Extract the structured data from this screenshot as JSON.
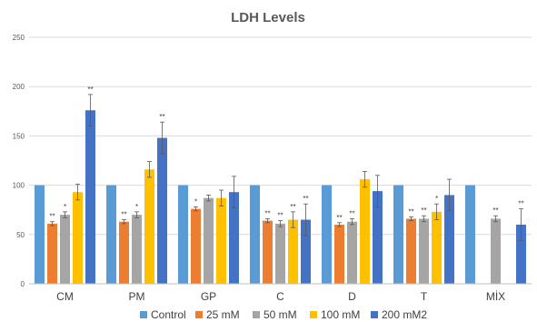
{
  "chart_data": {
    "type": "bar",
    "title": "LDH Levels",
    "xlabel": "",
    "ylabel": "",
    "ylim": [
      0,
      250
    ],
    "yticks": [
      0,
      50,
      100,
      150,
      200,
      250
    ],
    "grid": true,
    "legend_position": "bottom",
    "categories": [
      "CM",
      "PM",
      "GP",
      "C",
      "D",
      "T",
      "MİX"
    ],
    "series": [
      {
        "name": "Control",
        "color": "#5B9BD5",
        "values": [
          100,
          100,
          100,
          100,
          100,
          100,
          100
        ],
        "errors": [
          null,
          null,
          null,
          null,
          null,
          null,
          null
        ],
        "significance": [
          "",
          "",
          "",
          "",
          "",
          "",
          ""
        ]
      },
      {
        "name": "25 mM",
        "color": "#ED7D31",
        "values": [
          61,
          63,
          76,
          64,
          60,
          66,
          null
        ],
        "errors": [
          2,
          2,
          2,
          2,
          2,
          2,
          null
        ],
        "significance": [
          "**",
          "**",
          "*",
          "**",
          "**",
          "**",
          ""
        ]
      },
      {
        "name": "50 mM",
        "color": "#A5A5A5",
        "values": [
          70,
          70,
          87,
          61,
          63,
          66,
          66
        ],
        "errors": [
          3,
          3,
          3,
          3,
          3,
          3,
          3
        ],
        "significance": [
          "*",
          "*",
          "",
          "**",
          "**",
          "**",
          "**"
        ]
      },
      {
        "name": "100 mM",
        "color": "#FFC000",
        "values": [
          93,
          116,
          87,
          65,
          106,
          73,
          null
        ],
        "errors": [
          8,
          8,
          8,
          8,
          8,
          8,
          null
        ],
        "significance": [
          "",
          "",
          "",
          "**",
          "",
          "*",
          ""
        ]
      },
      {
        "name": "200 mM2",
        "color": "#4472C4",
        "values": [
          176,
          148,
          93,
          65,
          94,
          90,
          60
        ],
        "errors": [
          16,
          16,
          16,
          16,
          16,
          16,
          16
        ],
        "significance": [
          "**",
          "**",
          "",
          "**",
          "",
          "",
          "**"
        ]
      }
    ]
  }
}
